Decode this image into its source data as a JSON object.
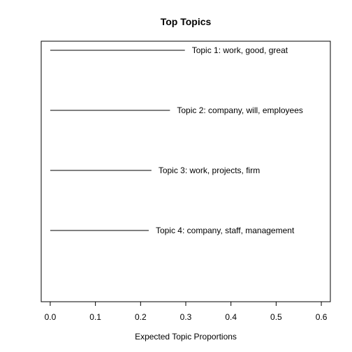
{
  "chart_data": {
    "type": "bar",
    "orientation": "horizontal",
    "title": "Top Topics",
    "xlabel": "Expected Topic Proportions",
    "ylabel": "",
    "xlim": [
      -0.02,
      0.62
    ],
    "xticks": [
      0.0,
      0.1,
      0.2,
      0.3,
      0.4,
      0.5,
      0.6
    ],
    "xtick_labels": [
      "0.0",
      "0.1",
      "0.2",
      "0.3",
      "0.4",
      "0.5",
      "0.6"
    ],
    "grid": false,
    "legend": "none",
    "categories": [
      "Topic 1: work, good, great",
      "Topic 2: company, will, employees",
      "Topic 3: work, projects, firm",
      "Topic 4: company, staff, management"
    ],
    "values": [
      0.298,
      0.265,
      0.224,
      0.218
    ],
    "colors": {
      "line": "#000000",
      "text": "#000000",
      "background": "#ffffff"
    }
  }
}
